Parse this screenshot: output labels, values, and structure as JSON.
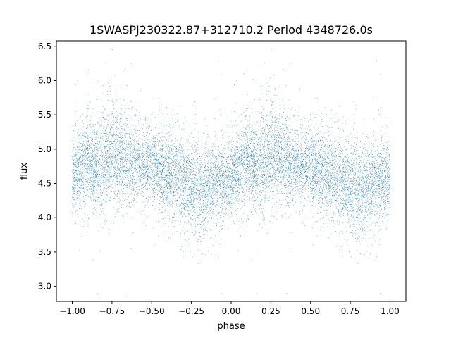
{
  "chart_data": {
    "type": "scatter",
    "title": "1SWASPJ230322.87+312710.2 Period 4348726.0s",
    "xlabel": "phase",
    "ylabel": "flux",
    "xlim": [
      -1.1,
      1.1
    ],
    "ylim": [
      2.78,
      6.58
    ],
    "x_ticks": [
      -1.0,
      -0.75,
      -0.5,
      -0.25,
      0.0,
      0.25,
      0.5,
      0.75,
      1.0
    ],
    "x_tick_labels": [
      "−1.00",
      "−0.75",
      "−0.50",
      "−0.25",
      "0.00",
      "0.25",
      "0.50",
      "0.75",
      "1.00"
    ],
    "y_ticks": [
      3.0,
      3.5,
      4.0,
      4.5,
      5.0,
      5.5,
      6.0,
      6.5
    ],
    "y_tick_labels": [
      "3.0",
      "3.5",
      "4.0",
      "4.5",
      "5.0",
      "5.5",
      "6.0",
      "6.5"
    ],
    "grid": false,
    "marker_color": "#1f77b4",
    "trend": {
      "phase": [
        0.0,
        0.05,
        0.1,
        0.15,
        0.2,
        0.25,
        0.3,
        0.35,
        0.4,
        0.45,
        0.5,
        0.55,
        0.6,
        0.65,
        0.7,
        0.75,
        0.8,
        0.85,
        0.9,
        0.95,
        1.0
      ],
      "flux": [
        4.6,
        4.75,
        4.85,
        4.75,
        4.8,
        4.95,
        4.9,
        4.85,
        4.8,
        4.8,
        4.75,
        4.7,
        4.65,
        4.6,
        4.55,
        4.45,
        4.4,
        4.45,
        4.5,
        4.55,
        4.6
      ],
      "scatter": [
        0.25,
        0.3,
        0.35,
        0.3,
        0.4,
        0.4,
        0.38,
        0.3,
        0.28,
        0.28,
        0.28,
        0.3,
        0.3,
        0.32,
        0.35,
        0.35,
        0.35,
        0.33,
        0.3,
        0.3,
        0.28
      ]
    }
  }
}
